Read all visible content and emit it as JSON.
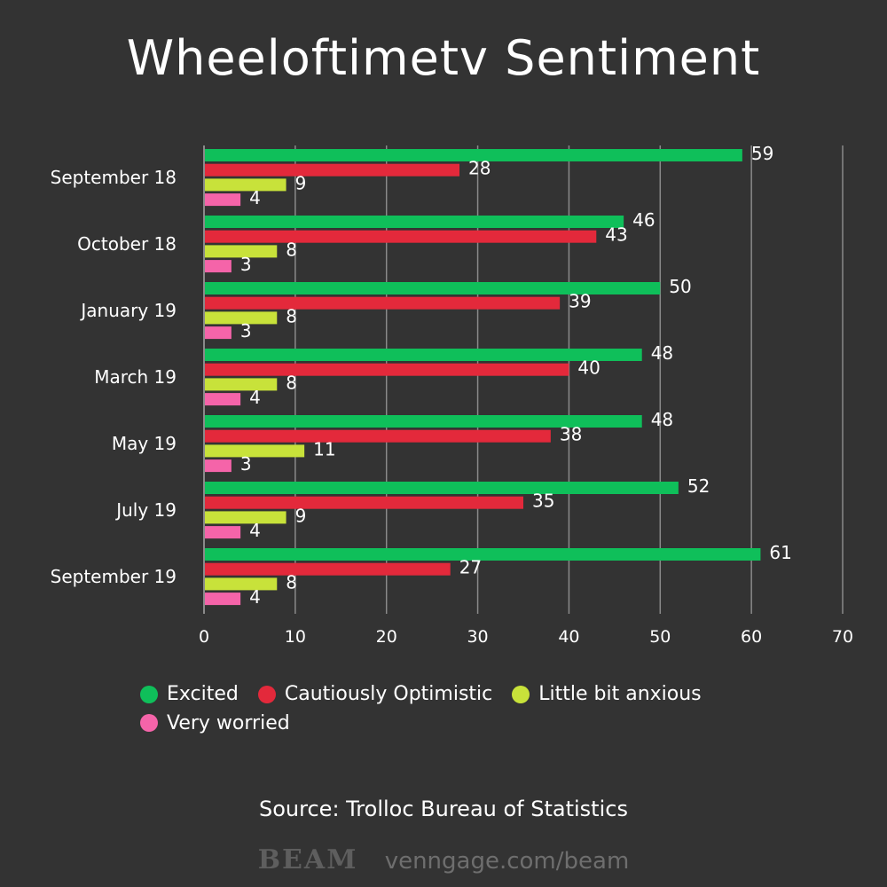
{
  "title": "Wheeloftimetv Sentiment",
  "source": "Source: Trolloc Bureau of Statistics",
  "footer": {
    "brand": "BEAM",
    "url": "venngage.com/beam"
  },
  "colors": {
    "background": "#333333",
    "grid": "#8a8a8a",
    "text": "#ffffff"
  },
  "chart_data": {
    "type": "bar",
    "orientation": "horizontal",
    "title": "Wheeloftimetv Sentiment",
    "xlabel": "",
    "ylabel": "",
    "xlim": [
      0,
      70
    ],
    "xticks": [
      0,
      10,
      20,
      30,
      40,
      50,
      60,
      70
    ],
    "grid": true,
    "legend_position": "bottom",
    "categories": [
      "September 18",
      "October 18",
      "January 19",
      "March 19",
      "May 19",
      "July 19",
      "September 19"
    ],
    "series": [
      {
        "name": "Excited",
        "color": "#0fbf5a",
        "values": [
          59,
          46,
          50,
          48,
          48,
          52,
          61
        ]
      },
      {
        "name": "Cautiously Optimistic",
        "color": "#e3293b",
        "values": [
          28,
          43,
          39,
          40,
          38,
          35,
          27
        ]
      },
      {
        "name": "Little bit anxious",
        "color": "#c8e23a",
        "values": [
          9,
          8,
          8,
          8,
          11,
          9,
          8
        ]
      },
      {
        "name": "Very worried",
        "color": "#f564a9",
        "values": [
          4,
          3,
          3,
          4,
          3,
          4,
          4
        ]
      }
    ]
  }
}
